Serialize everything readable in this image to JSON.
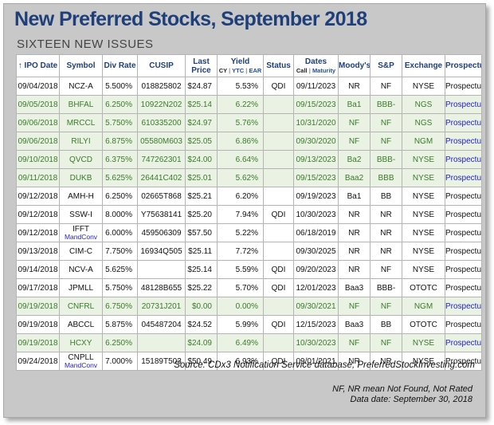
{
  "title": "New Preferred Stocks, September 2018",
  "subtitle": "SIXTEEN NEW ISSUES",
  "headers": {
    "ipo_date": "↑ IPO Date",
    "symbol": "Symbol",
    "div_rate": "Div Rate",
    "cusip": "CUSIP",
    "last_price_1": "Last",
    "last_price_2": "Price",
    "yield": "Yield",
    "yield_cy": "CY",
    "yield_ytc": "YTC",
    "yield_ear": "EAR",
    "status": "Status",
    "dates": "Dates",
    "dates_call": "Call",
    "dates_maturity": "Maturity",
    "moodys": "Moody's",
    "sp": "S&P",
    "exchange": "Exchange",
    "prospectus": "Prospectus"
  },
  "rows": [
    {
      "shade": "white",
      "ipo": "09/04/2018",
      "symbol": "NCZ-A",
      "sub": "",
      "rate": "5.500%",
      "cusip": "018825802",
      "price": "$24.87",
      "yield": "5.53%",
      "status": "QDI",
      "call": "09/11/2023",
      "moodys": "NR",
      "sp": "NF",
      "exch": "NYSE",
      "prospectus": "Prospectus"
    },
    {
      "shade": "green",
      "ipo": "09/05/2018",
      "symbol": "BHFAL",
      "sub": "",
      "rate": "6.250%",
      "cusip": "10922N202",
      "price": "$25.14",
      "yield": "6.22%",
      "status": "",
      "call": "09/15/2023",
      "moodys": "Ba1",
      "sp": "BBB-",
      "exch": "NGS",
      "prospectus": "Prospectus"
    },
    {
      "shade": "green",
      "ipo": "09/06/2018",
      "symbol": "MRCCL",
      "sub": "",
      "rate": "5.750%",
      "cusip": "610335200",
      "price": "$24.97",
      "yield": "5.76%",
      "status": "",
      "call": "10/31/2020",
      "moodys": "NF",
      "sp": "NF",
      "exch": "NGS",
      "prospectus": "Prospectus"
    },
    {
      "shade": "green",
      "ipo": "09/06/2018",
      "symbol": "RILYI",
      "sub": "",
      "rate": "6.875%",
      "cusip": "05580M603",
      "price": "$25.05",
      "yield": "6.86%",
      "status": "",
      "call": "09/30/2020",
      "moodys": "NF",
      "sp": "NF",
      "exch": "NGM",
      "prospectus": "Prospectus"
    },
    {
      "shade": "green",
      "ipo": "09/10/2018",
      "symbol": "QVCD",
      "sub": "",
      "rate": "6.375%",
      "cusip": "747262301",
      "price": "$24.00",
      "yield": "6.64%",
      "status": "",
      "call": "09/13/2023",
      "moodys": "Ba2",
      "sp": "BBB-",
      "exch": "NYSE",
      "prospectus": "Prospectus"
    },
    {
      "shade": "green",
      "ipo": "09/11/2018",
      "symbol": "DUKB",
      "sub": "",
      "rate": "5.625%",
      "cusip": "26441C402",
      "price": "$25.01",
      "yield": "5.62%",
      "status": "",
      "call": "09/15/2023",
      "moodys": "Baa2",
      "sp": "BBB",
      "exch": "NYSE",
      "prospectus": "Prospectus"
    },
    {
      "shade": "white",
      "ipo": "09/12/2018",
      "symbol": "AMH-H",
      "sub": "",
      "rate": "6.250%",
      "cusip": "02665T868",
      "price": "$25.21",
      "yield": "6.20%",
      "status": "",
      "call": "09/19/2023",
      "moodys": "Ba1",
      "sp": "BB",
      "exch": "NYSE",
      "prospectus": "Prospectus"
    },
    {
      "shade": "white",
      "ipo": "09/12/2018",
      "symbol": "SSW-I",
      "sub": "",
      "rate": "8.000%",
      "cusip": "Y75638141",
      "price": "$25.20",
      "yield": "7.94%",
      "status": "QDI",
      "call": "10/30/2023",
      "moodys": "NR",
      "sp": "NR",
      "exch": "NYSE",
      "prospectus": "Prospectus"
    },
    {
      "shade": "white",
      "ipo": "09/12/2018",
      "symbol": "IFFT",
      "sub": "MandConv",
      "rate": "6.000%",
      "cusip": "459506309",
      "price": "$57.50",
      "yield": "5.22%",
      "status": "",
      "call": "06/18/2019",
      "moodys": "NR",
      "sp": "NR",
      "exch": "NYSE",
      "prospectus": "Prospectus"
    },
    {
      "shade": "white",
      "ipo": "09/13/2018",
      "symbol": "CIM-C",
      "sub": "",
      "rate": "7.750%",
      "cusip": "16934Q505",
      "price": "$25.11",
      "yield": "7.72%",
      "status": "",
      "call": "09/30/2025",
      "moodys": "NR",
      "sp": "NR",
      "exch": "NYSE",
      "prospectus": "Prospectus"
    },
    {
      "shade": "white",
      "ipo": "09/14/2018",
      "symbol": "NCV-A",
      "sub": "",
      "rate": "5.625%",
      "cusip": "",
      "price": "$25.14",
      "yield": "5.59%",
      "status": "QDI",
      "call": "09/20/2023",
      "moodys": "NR",
      "sp": "NF",
      "exch": "NYSE",
      "prospectus": "Prospectus"
    },
    {
      "shade": "white",
      "ipo": "09/17/2018",
      "symbol": "JPMLL",
      "sub": "",
      "rate": "5.750%",
      "cusip": "48128B655",
      "price": "$25.22",
      "yield": "5.70%",
      "status": "QDI",
      "call": "12/01/2023",
      "moodys": "Baa3",
      "sp": "BBB-",
      "exch": "OTOTC",
      "prospectus": "Prospectus"
    },
    {
      "shade": "green",
      "ipo": "09/19/2018",
      "symbol": "CNFRL",
      "sub": "",
      "rate": "6.750%",
      "cusip": "20731J201",
      "price": "$0.00",
      "yield": "0.00%",
      "status": "",
      "call": "09/30/2021",
      "moodys": "NF",
      "sp": "NF",
      "exch": "NGM",
      "prospectus": "Prospectus"
    },
    {
      "shade": "white",
      "ipo": "09/19/2018",
      "symbol": "ABCCL",
      "sub": "",
      "rate": "5.875%",
      "cusip": "045487204",
      "price": "$24.52",
      "yield": "5.99%",
      "status": "QDI",
      "call": "12/15/2023",
      "moodys": "Baa3",
      "sp": "BB",
      "exch": "OTOTC",
      "prospectus": "Prospectus"
    },
    {
      "shade": "green",
      "ipo": "09/19/2018",
      "symbol": "HCXY",
      "sub": "",
      "rate": "6.250%",
      "cusip": "",
      "price": "$24.09",
      "yield": "6.49%",
      "status": "",
      "call": "10/30/2023",
      "moodys": "NF",
      "sp": "NF",
      "exch": "NYSE",
      "prospectus": "Prospectus"
    },
    {
      "shade": "white",
      "ipo": "09/24/2018",
      "symbol": "CNPLL",
      "sub": "MandConv",
      "rate": "7.000%",
      "cusip": "15189T503",
      "price": "$50.49",
      "yield": "6.93%",
      "status": "QDI",
      "call": "09/01/2021",
      "moodys": "NR",
      "sp": "NR",
      "exch": "NYSE",
      "prospectus": "Prospectus"
    }
  ],
  "source": "Source:  CDx3 Notification Service database, PreferredStockInvesting.com",
  "note_line1": "NF, NR mean Not Found, Not Rated",
  "note_line2": "Data date: September 30, 2018"
}
